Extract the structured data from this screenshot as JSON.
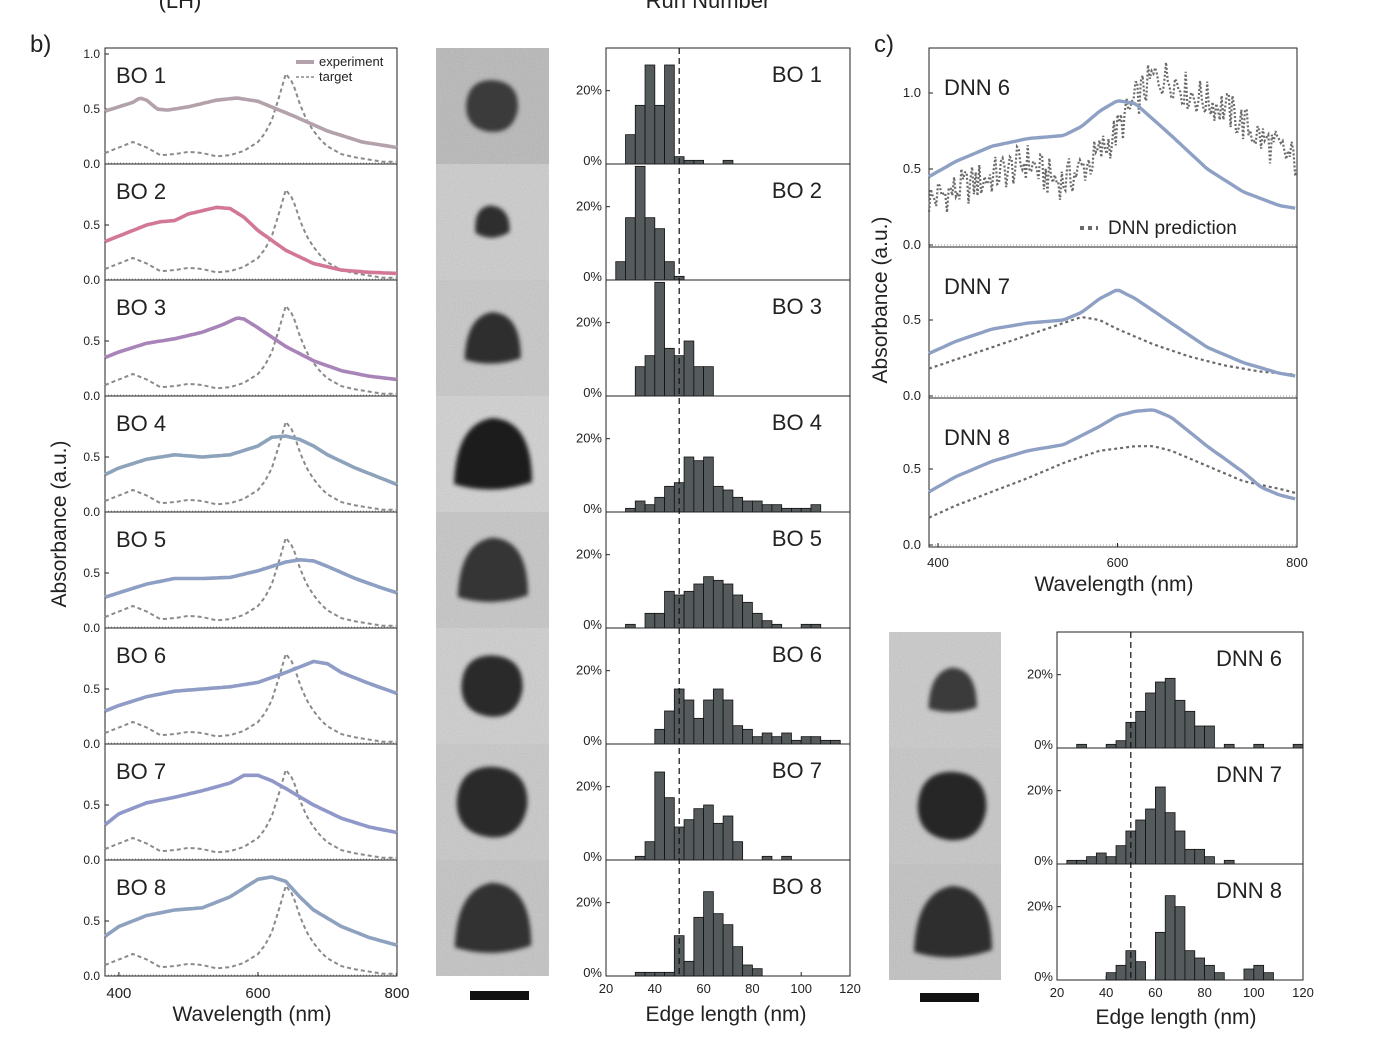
{
  "figure": {
    "cut_text_left": "(LH)",
    "cut_text_center": "Run Number",
    "panel_b_label": "b)",
    "panel_c_label": "c)"
  },
  "colors": {
    "target_line": "#8a8a8a",
    "hist_bar_fill": "#555a5c",
    "dnn_prediction": "#6a6a6a",
    "dnn_experiment": "#8ea0c4",
    "bo_experiment": [
      "#b3a2ac",
      "#d27896",
      "#a884b8",
      "#8da3bc",
      "#8e9fc4",
      "#8f9cc6",
      "#8f98c8",
      "#8ea2c0"
    ]
  },
  "chart_data": [
    {
      "type": "line",
      "panel": "b-spectra",
      "xlabel": "Wavelength (nm)",
      "ylabel": "Absorbance (a.u.)",
      "xlim": [
        380,
        800
      ],
      "xticks": [
        "400",
        "600",
        "800"
      ],
      "ylim": [
        0,
        1.0
      ],
      "yticks": [
        "0.0",
        "0.5",
        "1.0"
      ],
      "legend": {
        "placement": "top-right",
        "experiment": "experiment",
        "target": "target"
      },
      "target": {
        "x": [
          380,
          400,
          420,
          440,
          460,
          480,
          500,
          520,
          540,
          560,
          580,
          600,
          610,
          620,
          630,
          640,
          650,
          660,
          670,
          680,
          690,
          700,
          720,
          740,
          760,
          780,
          800
        ],
        "y": [
          0.1,
          0.15,
          0.2,
          0.15,
          0.08,
          0.09,
          0.11,
          0.1,
          0.07,
          0.08,
          0.12,
          0.2,
          0.28,
          0.4,
          0.6,
          0.82,
          0.74,
          0.55,
          0.4,
          0.3,
          0.22,
          0.16,
          0.09,
          0.06,
          0.04,
          0.02,
          0.02
        ]
      },
      "panels": [
        {
          "label": "BO 1",
          "x": [
            380,
            400,
            420,
            430,
            440,
            455,
            470,
            500,
            540,
            570,
            600,
            650,
            700,
            750,
            800
          ],
          "y": [
            0.48,
            0.52,
            0.56,
            0.6,
            0.58,
            0.5,
            0.49,
            0.52,
            0.58,
            0.6,
            0.57,
            0.44,
            0.3,
            0.2,
            0.15
          ]
        },
        {
          "label": "BO 2",
          "x": [
            380,
            400,
            420,
            440,
            460,
            480,
            500,
            520,
            540,
            560,
            580,
            600,
            640,
            680,
            720,
            760,
            800
          ],
          "y": [
            0.35,
            0.4,
            0.45,
            0.5,
            0.53,
            0.54,
            0.6,
            0.63,
            0.66,
            0.65,
            0.57,
            0.45,
            0.27,
            0.15,
            0.09,
            0.07,
            0.06
          ]
        },
        {
          "label": "BO 3",
          "x": [
            380,
            400,
            440,
            480,
            520,
            550,
            570,
            580,
            600,
            640,
            680,
            720,
            760,
            800
          ],
          "y": [
            0.35,
            0.4,
            0.48,
            0.52,
            0.58,
            0.65,
            0.71,
            0.7,
            0.62,
            0.45,
            0.32,
            0.23,
            0.18,
            0.15
          ]
        },
        {
          "label": "BO 4",
          "x": [
            380,
            400,
            440,
            480,
            520,
            560,
            600,
            620,
            640,
            660,
            680,
            700,
            740,
            780,
            800
          ],
          "y": [
            0.34,
            0.4,
            0.48,
            0.52,
            0.5,
            0.52,
            0.6,
            0.68,
            0.69,
            0.66,
            0.6,
            0.52,
            0.4,
            0.3,
            0.25
          ]
        },
        {
          "label": "BO 5",
          "x": [
            380,
            400,
            440,
            480,
            520,
            560,
            600,
            640,
            660,
            680,
            700,
            740,
            780,
            800
          ],
          "y": [
            0.28,
            0.32,
            0.4,
            0.45,
            0.45,
            0.46,
            0.52,
            0.6,
            0.62,
            0.61,
            0.56,
            0.45,
            0.36,
            0.32
          ]
        },
        {
          "label": "BO 6",
          "x": [
            380,
            400,
            440,
            480,
            520,
            560,
            600,
            640,
            680,
            700,
            720,
            760,
            800
          ],
          "y": [
            0.3,
            0.35,
            0.43,
            0.48,
            0.5,
            0.52,
            0.56,
            0.65,
            0.75,
            0.73,
            0.65,
            0.55,
            0.46
          ]
        },
        {
          "label": "BO 7",
          "x": [
            380,
            400,
            440,
            480,
            520,
            560,
            580,
            600,
            620,
            640,
            680,
            720,
            760,
            800
          ],
          "y": [
            0.32,
            0.42,
            0.52,
            0.57,
            0.63,
            0.7,
            0.77,
            0.77,
            0.72,
            0.65,
            0.5,
            0.38,
            0.3,
            0.25
          ]
        },
        {
          "label": "BO 8",
          "x": [
            380,
            400,
            440,
            480,
            520,
            560,
            600,
            620,
            640,
            660,
            680,
            720,
            760,
            800
          ],
          "y": [
            0.36,
            0.45,
            0.55,
            0.6,
            0.62,
            0.72,
            0.88,
            0.9,
            0.86,
            0.72,
            0.6,
            0.45,
            0.35,
            0.28
          ]
        }
      ]
    },
    {
      "type": "bar",
      "panel": "b-histograms",
      "xlabel": "Edge length (nm)",
      "xlim": [
        20,
        120
      ],
      "xticks": [
        "20",
        "40",
        "60",
        "80",
        "100",
        "120"
      ],
      "ytick_labels": [
        "0%",
        "20%"
      ],
      "ymax": 0.3,
      "reference_line": 50,
      "bin_width": 4,
      "panels": [
        {
          "label": "BO 1",
          "bins": [
            28,
            32,
            36,
            40,
            44,
            48,
            52,
            56,
            60,
            64,
            68
          ],
          "values": [
            0.08,
            0.16,
            0.27,
            0.16,
            0.27,
            0.02,
            0.01,
            0.01,
            0.0,
            0.0,
            0.01
          ]
        },
        {
          "label": "BO 2",
          "bins": [
            24,
            28,
            32,
            36,
            40,
            44,
            48,
            52
          ],
          "values": [
            0.05,
            0.17,
            0.31,
            0.17,
            0.14,
            0.05,
            0.01,
            0.0
          ]
        },
        {
          "label": "BO 3",
          "bins": [
            32,
            36,
            40,
            44,
            48,
            52,
            56,
            60,
            64,
            68
          ],
          "values": [
            0.08,
            0.11,
            0.31,
            0.13,
            0.11,
            0.15,
            0.08,
            0.08,
            0.0,
            0.0
          ]
        },
        {
          "label": "BO 4",
          "bins": [
            28,
            32,
            36,
            40,
            44,
            48,
            52,
            56,
            60,
            64,
            68,
            72,
            76,
            80,
            84,
            88,
            92,
            96,
            100,
            104,
            108
          ],
          "values": [
            0.01,
            0.03,
            0.02,
            0.04,
            0.07,
            0.08,
            0.15,
            0.14,
            0.15,
            0.07,
            0.06,
            0.04,
            0.03,
            0.03,
            0.02,
            0.02,
            0.01,
            0.01,
            0.01,
            0.02,
            0.0
          ]
        },
        {
          "label": "BO 5",
          "bins": [
            28,
            32,
            36,
            40,
            44,
            48,
            52,
            56,
            60,
            64,
            68,
            72,
            76,
            80,
            84,
            88,
            92,
            96,
            100,
            104,
            108
          ],
          "values": [
            0.01,
            0.0,
            0.04,
            0.04,
            0.1,
            0.09,
            0.1,
            0.12,
            0.14,
            0.13,
            0.12,
            0.09,
            0.07,
            0.04,
            0.02,
            0.01,
            0.0,
            0.0,
            0.01,
            0.01,
            0.0
          ]
        },
        {
          "label": "BO 6",
          "bins": [
            40,
            44,
            48,
            52,
            56,
            60,
            64,
            68,
            72,
            76,
            80,
            84,
            88,
            92,
            96,
            100,
            104,
            108,
            112
          ],
          "values": [
            0.04,
            0.09,
            0.15,
            0.12,
            0.07,
            0.12,
            0.15,
            0.12,
            0.05,
            0.04,
            0.02,
            0.03,
            0.02,
            0.03,
            0.01,
            0.02,
            0.02,
            0.01,
            0.01
          ]
        },
        {
          "label": "BO 7",
          "bins": [
            32,
            36,
            40,
            44,
            48,
            52,
            56,
            60,
            64,
            68,
            72,
            76,
            80,
            84,
            88,
            92
          ],
          "values": [
            0.01,
            0.05,
            0.24,
            0.17,
            0.09,
            0.11,
            0.14,
            0.15,
            0.1,
            0.12,
            0.05,
            0.0,
            0.0,
            0.01,
            0.0,
            0.01
          ]
        },
        {
          "label": "BO 8",
          "bins": [
            28,
            32,
            36,
            40,
            44,
            48,
            52,
            56,
            60,
            64,
            68,
            72,
            76,
            80
          ],
          "values": [
            0.0,
            0.01,
            0.01,
            0.01,
            0.01,
            0.11,
            0.04,
            0.16,
            0.23,
            0.17,
            0.14,
            0.08,
            0.03,
            0.02
          ]
        }
      ]
    },
    {
      "type": "line",
      "panel": "c-spectra",
      "xlabel": "Wavelength (nm)",
      "ylabel": "Absorbance (a.u.)",
      "xlim": [
        390,
        800
      ],
      "xticks": [
        "400",
        "600",
        "800"
      ],
      "yticks_top": [
        "0.0",
        "0.5",
        "1.0"
      ],
      "yticks_lower": [
        "0.0",
        "0.5"
      ],
      "legend": {
        "placement": "lower-right",
        "prediction": "DNN prediction"
      },
      "panels": [
        {
          "label": "DNN 6",
          "experiment": {
            "x": [
              390,
              420,
              460,
              500,
              540,
              560,
              580,
              600,
              620,
              660,
              700,
              740,
              780,
              800
            ],
            "y": [
              0.45,
              0.55,
              0.65,
              0.7,
              0.72,
              0.78,
              0.88,
              0.95,
              0.93,
              0.72,
              0.5,
              0.35,
              0.26,
              0.24
            ]
          },
          "prediction": {
            "x": [
              390,
              420,
              460,
              500,
              520,
              540,
              560,
              580,
              600,
              620,
              640,
              660,
              680,
              700,
              720,
              740,
              760,
              780,
              800
            ],
            "y": [
              0.3,
              0.36,
              0.45,
              0.55,
              0.45,
              0.42,
              0.5,
              0.6,
              0.75,
              0.95,
              1.1,
              1.1,
              1.0,
              0.95,
              0.9,
              0.8,
              0.7,
              0.62,
              0.55
            ]
          }
        },
        {
          "label": "DNN 7",
          "experiment": {
            "x": [
              390,
              420,
              460,
              500,
              540,
              560,
              580,
              600,
              620,
              660,
              700,
              740,
              780,
              800
            ],
            "y": [
              0.28,
              0.36,
              0.44,
              0.48,
              0.5,
              0.55,
              0.64,
              0.7,
              0.64,
              0.48,
              0.32,
              0.22,
              0.15,
              0.13
            ]
          },
          "prediction": {
            "x": [
              390,
              420,
              460,
              500,
              540,
              560,
              580,
              600,
              640,
              680,
              720,
              760,
              800
            ],
            "y": [
              0.18,
              0.24,
              0.32,
              0.4,
              0.48,
              0.52,
              0.5,
              0.44,
              0.34,
              0.26,
              0.2,
              0.16,
              0.14
            ]
          }
        },
        {
          "label": "DNN 8",
          "experiment": {
            "x": [
              390,
              420,
              460,
              500,
              540,
              580,
              600,
              620,
              640,
              660,
              700,
              740,
              760,
              780,
              800
            ],
            "y": [
              0.35,
              0.45,
              0.55,
              0.62,
              0.66,
              0.78,
              0.85,
              0.88,
              0.89,
              0.84,
              0.65,
              0.48,
              0.38,
              0.33,
              0.3
            ]
          },
          "prediction": {
            "x": [
              390,
              420,
              460,
              500,
              540,
              580,
              620,
              640,
              660,
              700,
              740,
              780,
              800
            ],
            "y": [
              0.18,
              0.26,
              0.35,
              0.44,
              0.54,
              0.62,
              0.65,
              0.65,
              0.62,
              0.52,
              0.42,
              0.37,
              0.34
            ]
          }
        }
      ]
    },
    {
      "type": "bar",
      "panel": "c-histograms",
      "xlabel": "Edge length (nm)",
      "xlim": [
        20,
        120
      ],
      "xticks": [
        "20",
        "40",
        "60",
        "80",
        "100",
        "120"
      ],
      "ytick_labels": [
        "0%",
        "20%"
      ],
      "ymax": 0.3,
      "reference_line": 50,
      "bin_width": 4,
      "panels": [
        {
          "label": "DNN 6",
          "bins": [
            28,
            32,
            36,
            40,
            44,
            48,
            52,
            56,
            60,
            64,
            68,
            72,
            76,
            80,
            84,
            88,
            92,
            96,
            100,
            104,
            108,
            112,
            116
          ],
          "values": [
            0.01,
            0.0,
            0.0,
            0.01,
            0.02,
            0.07,
            0.1,
            0.15,
            0.18,
            0.19,
            0.13,
            0.1,
            0.06,
            0.06,
            0.0,
            0.01,
            0.0,
            0.0,
            0.01,
            0.0,
            0.0,
            0.0,
            0.01
          ]
        },
        {
          "label": "DNN 7",
          "bins": [
            24,
            28,
            32,
            36,
            40,
            44,
            48,
            52,
            56,
            60,
            64,
            68,
            72,
            76,
            80,
            84,
            88
          ],
          "values": [
            0.01,
            0.01,
            0.02,
            0.03,
            0.02,
            0.05,
            0.09,
            0.12,
            0.15,
            0.21,
            0.14,
            0.09,
            0.04,
            0.04,
            0.02,
            0.0,
            0.01
          ]
        },
        {
          "label": "DNN 8",
          "bins": [
            32,
            36,
            40,
            44,
            48,
            52,
            56,
            60,
            64,
            68,
            72,
            76,
            80,
            84,
            88,
            92,
            96,
            100,
            104
          ],
          "values": [
            0.0,
            0.0,
            0.02,
            0.04,
            0.08,
            0.05,
            0.0,
            0.13,
            0.23,
            0.2,
            0.08,
            0.06,
            0.04,
            0.02,
            0.0,
            0.0,
            0.03,
            0.04,
            0.02
          ]
        }
      ]
    }
  ],
  "tem_panel_b": {
    "label_count": 8,
    "scale_bar": ""
  },
  "tem_panel_c": {
    "label_count": 3,
    "scale_bar": ""
  }
}
